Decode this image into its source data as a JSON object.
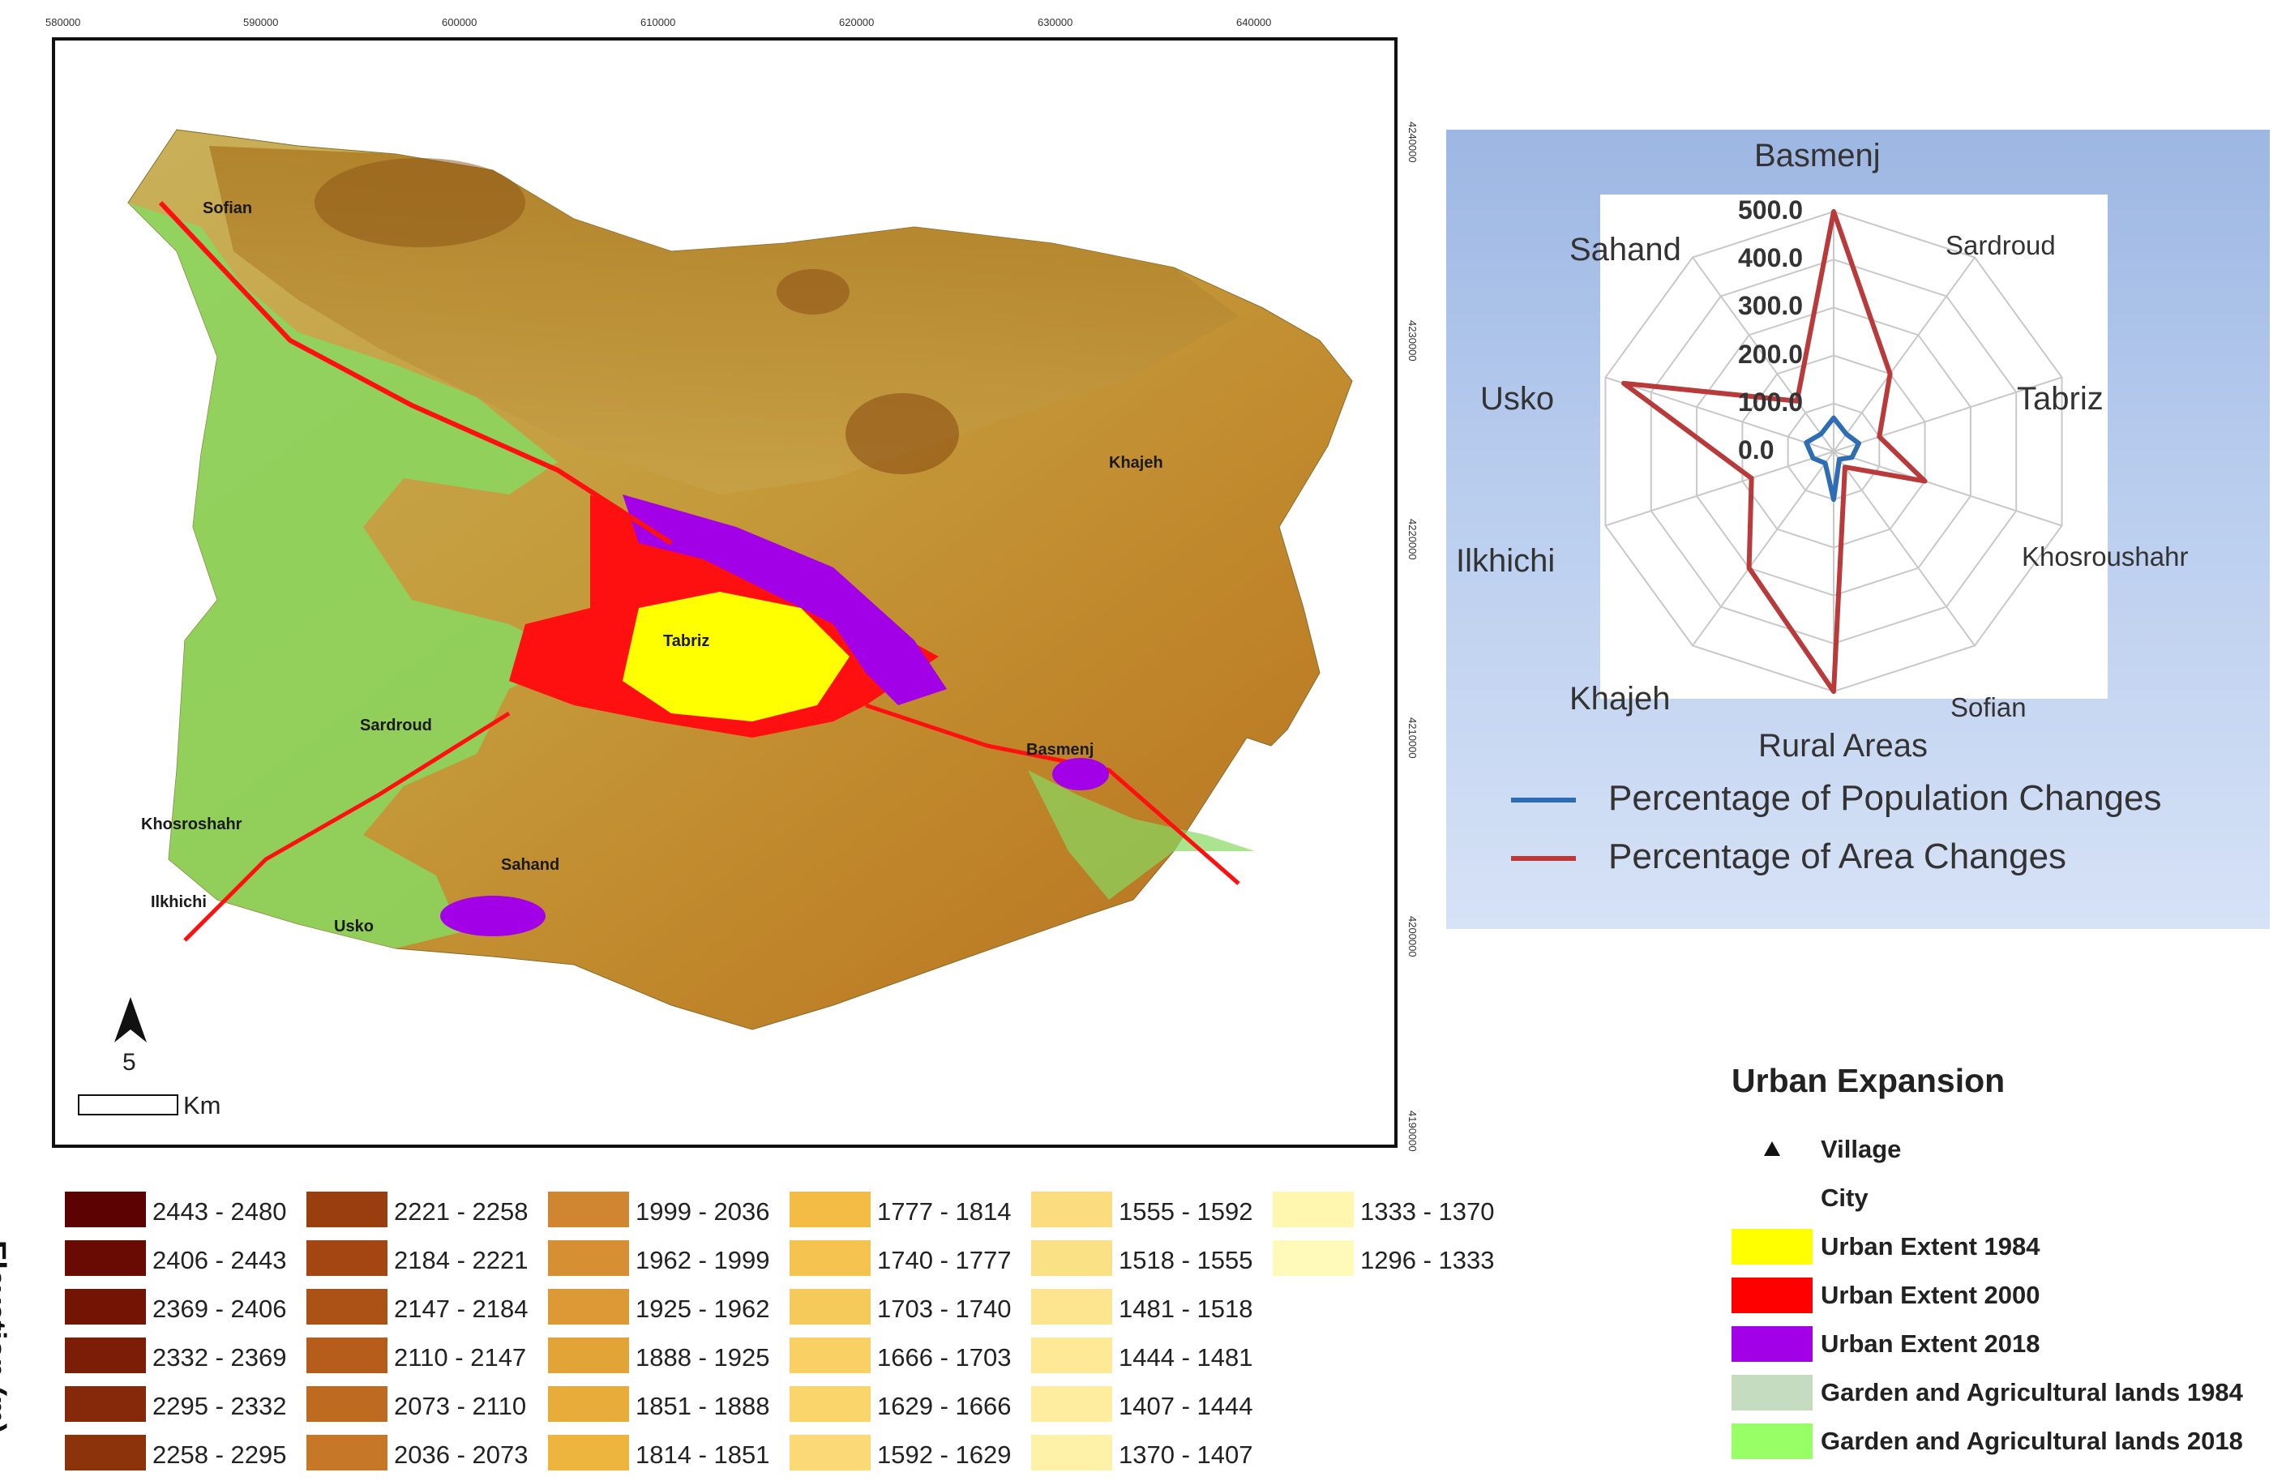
{
  "map": {
    "x_ticks": [
      "580000",
      "590000",
      "600000",
      "610000",
      "620000",
      "630000",
      "640000"
    ],
    "y_ticks": [
      "4240000",
      "4230000",
      "4220000",
      "4210000",
      "4200000",
      "4190000"
    ],
    "places": [
      {
        "name": "Sofian"
      },
      {
        "name": "Khajeh"
      },
      {
        "name": "Tabriz"
      },
      {
        "name": "Sardroud"
      },
      {
        "name": "Basmenj"
      },
      {
        "name": "Khosroshahr"
      },
      {
        "name": "Sahand"
      },
      {
        "name": "Ilkhichi"
      },
      {
        "name": "Usko"
      }
    ],
    "north_arrow_label": "5",
    "scale_label": "Km"
  },
  "radar": {
    "axes": [
      "Basmenj",
      "Sardroud",
      "Tabriz",
      "Khosroushahr",
      "Sofian",
      "Rural Areas",
      "Khajeh",
      "Ilkhichi",
      "Usko",
      "Sahand"
    ],
    "ticks": [
      "500.0",
      "400.0",
      "300.0",
      "200.0",
      "100.0",
      "0.0"
    ],
    "max": 500,
    "population_changes": [
      70,
      45,
      55,
      40,
      20,
      100,
      30,
      45,
      60,
      45
    ],
    "area_changes": [
      510,
      200,
      100,
      200,
      40,
      510,
      300,
      180,
      460,
      130
    ],
    "legend": [
      {
        "label": "Percentage of Population Changes",
        "color": "#2e6db4"
      },
      {
        "label": "Percentage of Area Changes",
        "color": "#b83a3a"
      }
    ]
  },
  "urban_legend": {
    "title": "Urban Expansion",
    "items": [
      {
        "label": "Village",
        "color": ""
      },
      {
        "label": "City",
        "color": ""
      },
      {
        "label": "Urban Extent 1984",
        "color": "#ffff00"
      },
      {
        "label": "Urban Extent 2000",
        "color": "#ff0000"
      },
      {
        "label": "Urban Extent 2018",
        "color": "#a200e6"
      },
      {
        "label": "Garden and Agricultural lands 1984",
        "color": "#c5dcc0"
      },
      {
        "label": "Garden and Agricultural lands 2018",
        "color": "#99ff66"
      }
    ]
  },
  "elevation": {
    "title": "Elevation (m)",
    "classes": [
      [
        "2443 - 2480",
        "2406 - 2443",
        "2369 - 2406",
        "2332 - 2369",
        "2295 - 2332",
        "2258 - 2295"
      ],
      [
        "2221 - 2258",
        "2184 - 2221",
        "2147 - 2184",
        "2110 - 2147",
        "2073 - 2110",
        "2036 - 2073"
      ],
      [
        "1999 - 2036",
        "1962 - 1999",
        "1925 - 1962",
        "1888 - 1925",
        "1851 - 1888",
        "1814 - 1851"
      ],
      [
        "1777 - 1814",
        "1740 - 1777",
        "1703 - 1740",
        "1666 - 1703",
        "1629 - 1666",
        "1592 - 1629"
      ],
      [
        "1555 - 1592",
        "1518 - 1555",
        "1481 - 1518",
        "1444 - 1481",
        "1407 - 1444",
        "1370 - 1407"
      ],
      [
        "1333 - 1370",
        "1296 - 1333"
      ]
    ],
    "colors": [
      [
        "#5c0202",
        "#6a0b03",
        "#741405",
        "#7c1e07",
        "#85290a",
        "#8c330c"
      ],
      [
        "#9a3d0f",
        "#a34612",
        "#ad5217",
        "#b65d1b",
        "#bf6a21",
        "#c67828"
      ],
      [
        "#d08530",
        "#d68f33",
        "#dc9935",
        "#e2a337",
        "#e8ac3a",
        "#eeb53e"
      ],
      [
        "#f2bc45",
        "#f4c350",
        "#f6ca5a",
        "#f8d063",
        "#f9d56c",
        "#fad976"
      ],
      [
        "#fbdd7f",
        "#fbe186",
        "#fce58e",
        "#fde996",
        "#feed9f",
        "#fef1a8"
      ],
      [
        "#fff6b0",
        "#fffab9"
      ]
    ]
  }
}
